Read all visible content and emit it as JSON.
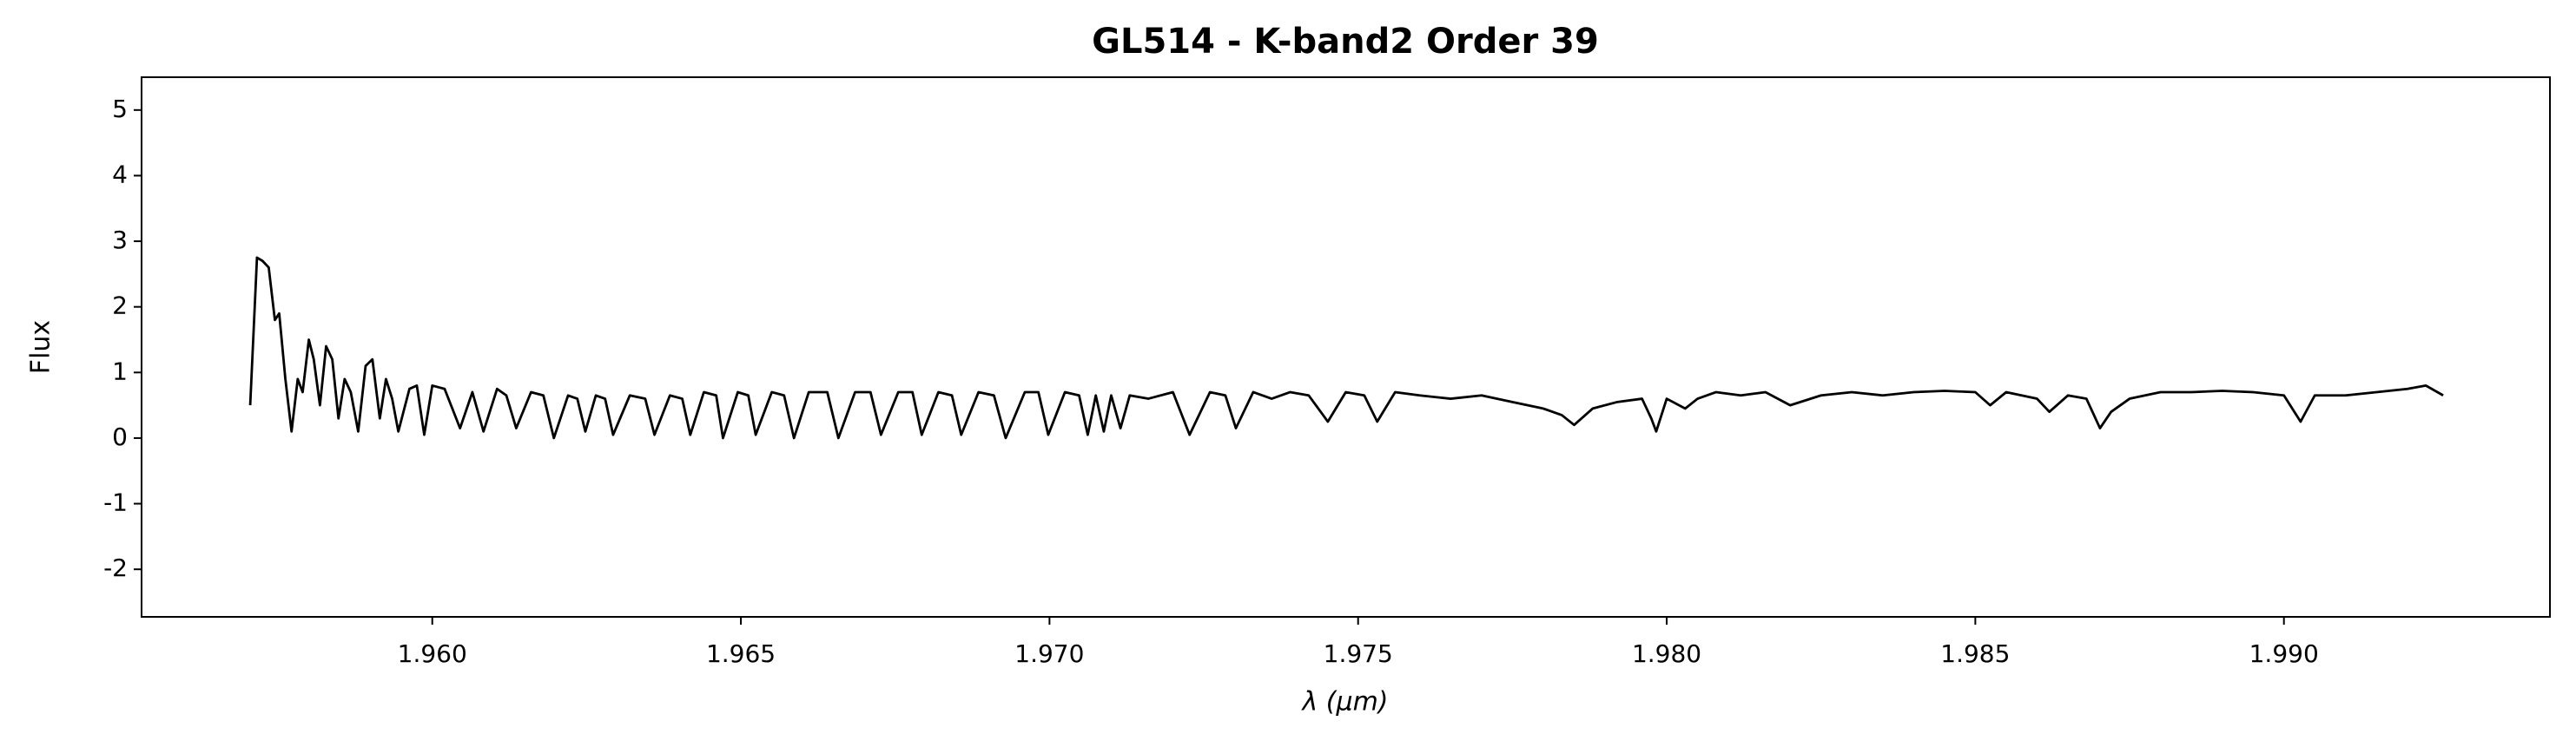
{
  "chart_data": {
    "type": "line",
    "title": "GL514 - K-band2 Order 39",
    "x_label": "λ (μm)",
    "y_label": "Flux",
    "color": "#000000",
    "x": [
      1.95705,
      1.95716,
      1.95725,
      1.95735,
      1.95745,
      1.95752,
      1.95762,
      1.95772,
      1.95782,
      1.9579,
      1.958,
      1.95808,
      1.95818,
      1.95828,
      1.95838,
      1.95848,
      1.95858,
      1.95868,
      1.9588,
      1.95892,
      1.95903,
      1.95915,
      1.95925,
      1.95935,
      1.95945,
      1.95963,
      1.95975,
      1.95987,
      1.96,
      1.9602,
      1.96045,
      1.96065,
      1.96083,
      1.96105,
      1.9612,
      1.96136,
      1.9616,
      1.9618,
      1.96197,
      1.9622,
      1.96235,
      1.96248,
      1.96265,
      1.9628,
      1.96293,
      1.9632,
      1.96345,
      1.9636,
      1.96385,
      1.96405,
      1.96418,
      1.9644,
      1.9646,
      1.96471,
      1.96495,
      1.96512,
      1.96524,
      1.9655,
      1.9657,
      1.96586,
      1.9661,
      1.9664,
      1.96658,
      1.96685,
      1.9671,
      1.96727,
      1.96755,
      1.96778,
      1.96793,
      1.9682,
      1.96842,
      1.96857,
      1.96885,
      1.9691,
      1.96929,
      1.9696,
      1.96982,
      1.96998,
      1.97025,
      1.97048,
      1.97062,
      1.97075,
      1.97088,
      1.971,
      1.97115,
      1.9713,
      1.9716,
      1.972,
      1.97227,
      1.9726,
      1.97285,
      1.97302,
      1.9733,
      1.9736,
      1.9739,
      1.9742,
      1.97451,
      1.9748,
      1.9751,
      1.97531,
      1.9756,
      1.976,
      1.9765,
      1.977,
      1.9775,
      1.978,
      1.9783,
      1.9785,
      1.9788,
      1.9792,
      1.9796,
      1.97975,
      1.97983,
      1.98,
      1.9803,
      1.9805,
      1.9808,
      1.9812,
      1.9816,
      1.982,
      1.9825,
      1.983,
      1.9835,
      1.984,
      1.9845,
      1.985,
      1.98524,
      1.9855,
      1.986,
      1.9862,
      1.9865,
      1.9868,
      1.98702,
      1.9872,
      1.9875,
      1.988,
      1.9885,
      1.989,
      1.9895,
      1.99,
      1.99027,
      1.9905,
      1.991,
      1.9915,
      1.992,
      1.9923,
      1.99258
    ],
    "values": [
      0.5,
      2.75,
      2.7,
      2.6,
      1.8,
      1.9,
      0.9,
      0.1,
      0.9,
      0.7,
      1.5,
      1.2,
      0.5,
      1.4,
      1.2,
      0.3,
      0.9,
      0.7,
      0.1,
      1.1,
      1.2,
      0.3,
      0.9,
      0.6,
      0.1,
      0.75,
      0.8,
      0.05,
      0.8,
      0.75,
      0.15,
      0.7,
      0.1,
      0.75,
      0.65,
      0.15,
      0.7,
      0.65,
      0.0,
      0.65,
      0.6,
      0.1,
      0.65,
      0.6,
      0.05,
      0.65,
      0.6,
      0.05,
      0.65,
      0.6,
      0.05,
      0.7,
      0.65,
      0.0,
      0.7,
      0.65,
      0.05,
      0.7,
      0.65,
      0.0,
      0.7,
      0.7,
      0.0,
      0.7,
      0.7,
      0.05,
      0.7,
      0.7,
      0.05,
      0.7,
      0.65,
      0.05,
      0.7,
      0.65,
      0.0,
      0.7,
      0.7,
      0.05,
      0.7,
      0.65,
      0.05,
      0.65,
      0.1,
      0.65,
      0.15,
      0.65,
      0.6,
      0.7,
      0.05,
      0.7,
      0.65,
      0.15,
      0.7,
      0.6,
      0.7,
      0.65,
      0.25,
      0.7,
      0.65,
      0.25,
      0.7,
      0.65,
      0.6,
      0.65,
      0.55,
      0.45,
      0.35,
      0.2,
      0.45,
      0.55,
      0.6,
      0.3,
      0.1,
      0.6,
      0.45,
      0.6,
      0.7,
      0.65,
      0.7,
      0.5,
      0.65,
      0.7,
      0.65,
      0.7,
      0.72,
      0.7,
      0.5,
      0.7,
      0.6,
      0.4,
      0.65,
      0.6,
      0.15,
      0.4,
      0.6,
      0.7,
      0.7,
      0.72,
      0.7,
      0.65,
      0.25,
      0.65,
      0.65,
      0.7,
      0.75,
      0.8,
      0.65
    ],
    "xlim": [
      1.95529,
      1.99431
    ],
    "xticks": [
      {
        "value": 1.96,
        "label": "1.960"
      },
      {
        "value": 1.965,
        "label": "1.965"
      },
      {
        "value": 1.97,
        "label": "1.970"
      },
      {
        "value": 1.975,
        "label": "1.975"
      },
      {
        "value": 1.98,
        "label": "1.980"
      },
      {
        "value": 1.985,
        "label": "1.985"
      },
      {
        "value": 1.99,
        "label": "1.990"
      }
    ],
    "ylim": [
      -2.725,
      5.5
    ],
    "yticks": [
      -2,
      -1,
      0,
      1,
      2,
      3,
      4,
      5
    ],
    "grid": false
  }
}
